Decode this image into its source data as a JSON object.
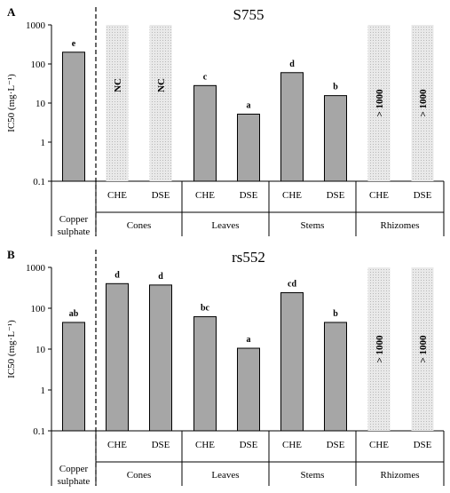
{
  "colors": {
    "bar_fill": "#a6a6a6",
    "bar_stroke": "#000000",
    "hatch_fill": "#e9e9e9",
    "hatch_dot": "#b8b8b8",
    "axis": "#000000"
  },
  "chart_data": [
    {
      "type": "bar",
      "panel_label": "A",
      "title": "S755",
      "ylabel": "IC50 (mg·L⁻¹)",
      "yscale": "log",
      "ylim": [
        0.1,
        1000
      ],
      "yticks": [
        "0.1",
        "1",
        "10",
        "100",
        "1000"
      ],
      "grid": false,
      "legend": "none",
      "groups": [
        {
          "name": "Copper sulphate",
          "label_lines": [
            "Copper",
            "sulphate"
          ],
          "bars": [
            {
              "category": "",
              "value": 200,
              "letter": "e",
              "style": "solid"
            }
          ]
        },
        {
          "name": "Cones",
          "label_lines": [
            "Cones"
          ],
          "bars": [
            {
              "category": "CHE",
              "value": 1000,
              "text": "NC",
              "style": "hatched"
            },
            {
              "category": "DSE",
              "value": 1000,
              "text": "NC",
              "style": "hatched"
            }
          ]
        },
        {
          "name": "Leaves",
          "label_lines": [
            "Leaves"
          ],
          "bars": [
            {
              "category": "CHE",
              "value": 28,
              "letter": "c",
              "style": "solid"
            },
            {
              "category": "DSE",
              "value": 5.2,
              "letter": "a",
              "style": "solid"
            }
          ]
        },
        {
          "name": "Stems",
          "label_lines": [
            "Stems"
          ],
          "bars": [
            {
              "category": "CHE",
              "value": 60,
              "letter": "d",
              "style": "solid"
            },
            {
              "category": "DSE",
              "value": 15.5,
              "letter": "b",
              "style": "solid"
            }
          ]
        },
        {
          "name": "Rhizomes",
          "label_lines": [
            "Rhizomes"
          ],
          "bars": [
            {
              "category": "CHE",
              "value": 1000,
              "text": "> 1000",
              "style": "hatched"
            },
            {
              "category": "DSE",
              "value": 1000,
              "text": "> 1000",
              "style": "hatched"
            }
          ]
        }
      ]
    },
    {
      "type": "bar",
      "panel_label": "B",
      "title": "rs552",
      "ylabel": "IC50 (mg·L⁻¹)",
      "yscale": "log",
      "ylim": [
        0.1,
        1000
      ],
      "yticks": [
        "0.1",
        "1",
        "10",
        "100",
        "1000"
      ],
      "grid": false,
      "legend": "none",
      "groups": [
        {
          "name": "Copper sulphate",
          "label_lines": [
            "Copper",
            "sulphate"
          ],
          "bars": [
            {
              "category": "",
              "value": 45,
              "letter": "ab",
              "style": "solid"
            }
          ]
        },
        {
          "name": "Cones",
          "label_lines": [
            "Cones"
          ],
          "bars": [
            {
              "category": "CHE",
              "value": 400,
              "letter": "d",
              "style": "solid"
            },
            {
              "category": "DSE",
              "value": 370,
              "letter": "d",
              "style": "solid"
            }
          ]
        },
        {
          "name": "Leaves",
          "label_lines": [
            "Leaves"
          ],
          "bars": [
            {
              "category": "CHE",
              "value": 62,
              "letter": "bc",
              "style": "solid"
            },
            {
              "category": "DSE",
              "value": 10.5,
              "letter": "a",
              "style": "solid"
            }
          ]
        },
        {
          "name": "Stems",
          "label_lines": [
            "Stems"
          ],
          "bars": [
            {
              "category": "CHE",
              "value": 240,
              "letter": "cd",
              "style": "solid"
            },
            {
              "category": "DSE",
              "value": 45,
              "letter": "b",
              "style": "solid"
            }
          ]
        },
        {
          "name": "Rhizomes",
          "label_lines": [
            "Rhizomes"
          ],
          "bars": [
            {
              "category": "CHE",
              "value": 1000,
              "text": "> 1000",
              "style": "hatched"
            },
            {
              "category": "DSE",
              "value": 1000,
              "text": "> 1000",
              "style": "hatched"
            }
          ]
        }
      ]
    }
  ]
}
